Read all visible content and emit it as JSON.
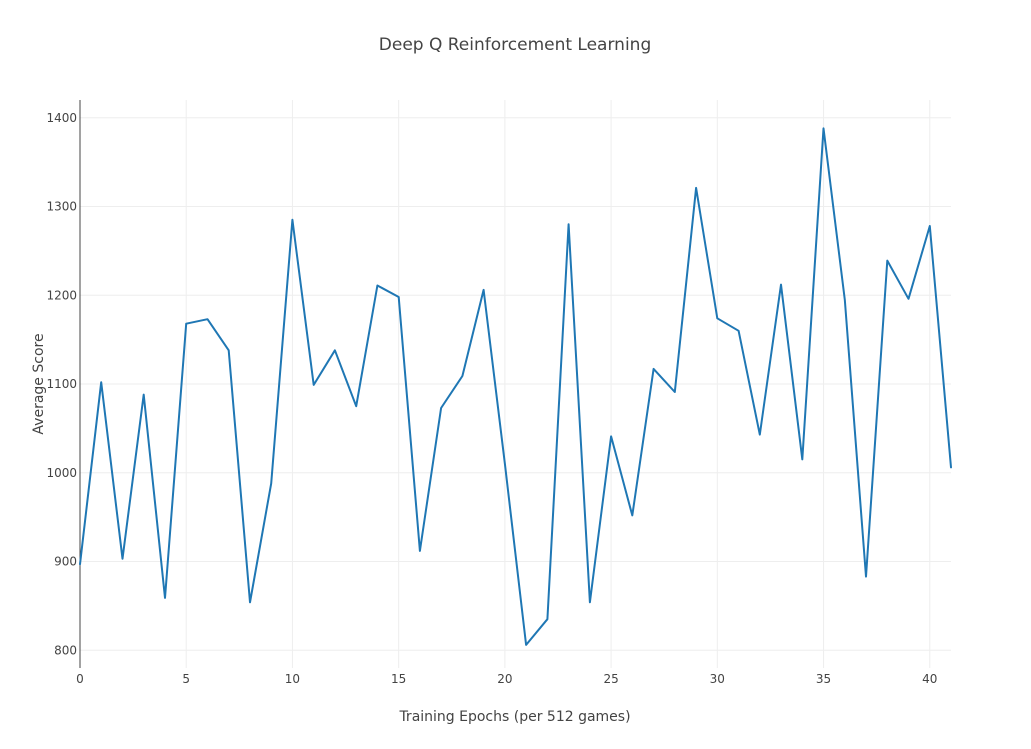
{
  "chart_data": {
    "type": "line",
    "title": "Deep Q Reinforcement Learning",
    "xlabel": "Training Epochs (per 512 games)",
    "ylabel": "Average Score",
    "xlim": [
      0,
      41
    ],
    "ylim": [
      780,
      1420
    ],
    "xticks": [
      0,
      5,
      10,
      15,
      20,
      25,
      30,
      35,
      40
    ],
    "yticks": [
      800,
      900,
      1000,
      1100,
      1200,
      1300,
      1400
    ],
    "grid": true,
    "legend": "none",
    "series": [
      {
        "color": "#1f77b4",
        "x": [
          0,
          1,
          2,
          3,
          4,
          5,
          6,
          7,
          8,
          9,
          10,
          11,
          12,
          13,
          14,
          15,
          16,
          17,
          18,
          19,
          20,
          21,
          22,
          23,
          24,
          25,
          26,
          27,
          28,
          29,
          30,
          31,
          32,
          33,
          34,
          35,
          36,
          37,
          38,
          39,
          40,
          41
        ],
        "y": [
          897,
          1102,
          903,
          1088,
          859,
          1168,
          1173,
          1138,
          854,
          988,
          1285,
          1099,
          1138,
          1075,
          1211,
          1198,
          912,
          1073,
          1109,
          1206,
          1010,
          806,
          835,
          1280,
          854,
          1041,
          952,
          1117,
          1091,
          1321,
          1174,
          1160,
          1043,
          1212,
          1015,
          1388,
          1195,
          883,
          1239,
          1196,
          1278,
          1006
        ]
      }
    ]
  }
}
